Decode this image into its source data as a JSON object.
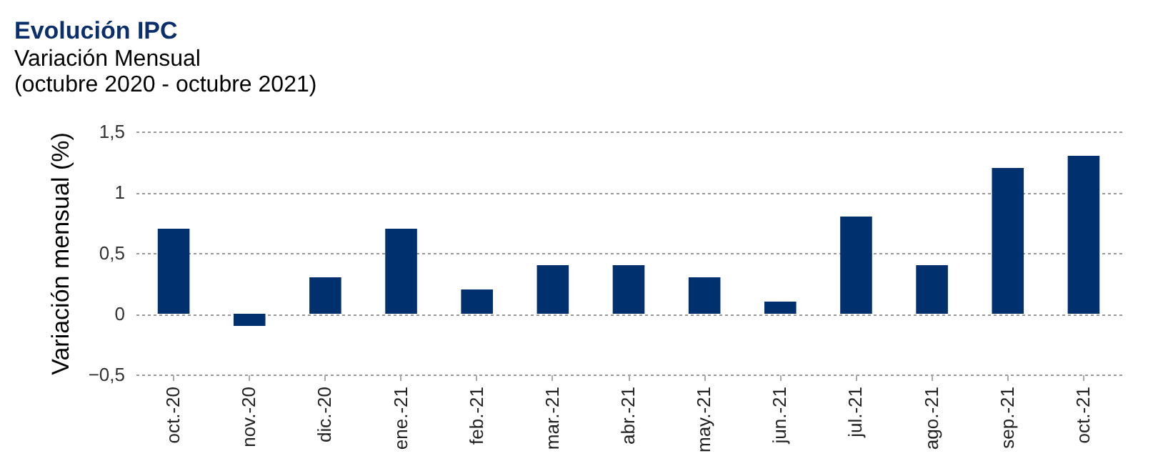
{
  "chart_data": {
    "type": "bar",
    "title": "Evolución IPC",
    "subtitle": "Variación Mensual\n(octubre 2020 - octubre 2021)",
    "ylabel": "Variación mensual (%)",
    "categories": [
      "oct.-20",
      "nov.-20",
      "dic.-20",
      "ene.-21",
      "feb.-21",
      "mar.-21",
      "abr.-21",
      "may.-21",
      "jun.-21",
      "jul.-21",
      "ago.-21",
      "sep.-21",
      "oct.-21"
    ],
    "values": [
      0.7,
      -0.1,
      0.3,
      0.7,
      0.2,
      0.4,
      0.4,
      0.3,
      0.1,
      0.8,
      0.4,
      1.2,
      1.3
    ],
    "color": "#00306e",
    "ylim": [
      -0.5,
      1.5
    ],
    "yticks": [
      {
        "value": -0.5,
        "label": "−0,5"
      },
      0,
      {
        "value": 0.5,
        "label": "0,5"
      },
      1,
      {
        "value": 1.5,
        "label": "1,5"
      }
    ],
    "grid": "y"
  }
}
